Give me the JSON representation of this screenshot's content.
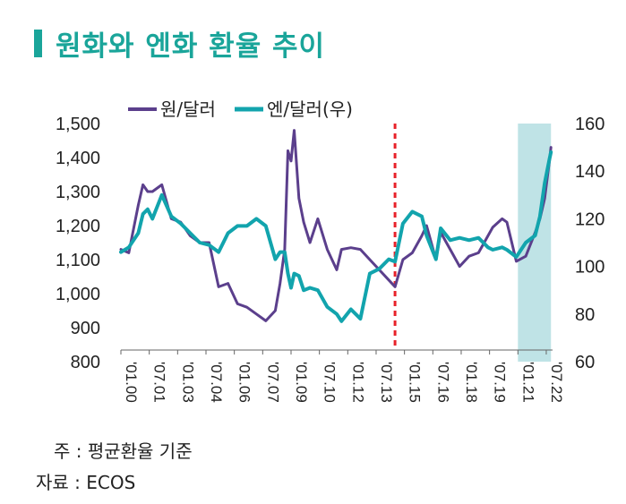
{
  "title": "원화와 엔화 환율 추이",
  "notes": {
    "note": "주 : 평균환율 기준",
    "source": "자료 : ECOS"
  },
  "colors": {
    "accent": "#1aa59a",
    "won": "#5b3f8c",
    "yen": "#12a4ad",
    "marker": "#e8222a",
    "shade": "#bfe3e6"
  },
  "chart_data": {
    "type": "line",
    "title": "",
    "legend": [
      "원/달러",
      "엔/달러(우)"
    ],
    "legend_position": "top",
    "x_ticks": [
      "'01.00",
      "'07.01",
      "'01.03",
      "'07.04",
      "'01.06",
      "'07.07",
      "'01.09",
      "'07.10",
      "'01.12",
      "'07.13",
      "'01.15",
      "'07.16",
      "'01.18",
      "'07.19",
      "'01.21",
      "'07.22"
    ],
    "y_left": {
      "ticks": [
        "1,500",
        "1,400",
        "1,300",
        "1,200",
        "1,100",
        "1,000",
        "900",
        "800"
      ],
      "range": [
        800,
        1500
      ]
    },
    "y_right": {
      "ticks": [
        "160",
        "140",
        "120",
        "100",
        "80",
        "60"
      ],
      "range": [
        60,
        160
      ]
    },
    "vertical_marker_x": "2014-07",
    "shaded_range": [
      "2021-01",
      "2022-10"
    ],
    "series": [
      {
        "name": "원/달러",
        "axis": "left",
        "x": [
          "2000-01",
          "2000-06",
          "2000-12",
          "2001-03",
          "2001-06",
          "2001-09",
          "2002-03",
          "2002-09",
          "2003-03",
          "2003-09",
          "2004-03",
          "2004-09",
          "2005-03",
          "2005-09",
          "2006-03",
          "2006-09",
          "2007-03",
          "2007-09",
          "2008-03",
          "2008-06",
          "2008-09",
          "2008-11",
          "2009-01",
          "2009-03",
          "2009-06",
          "2009-09",
          "2010-01",
          "2010-06",
          "2010-12",
          "2011-06",
          "2011-09",
          "2012-03",
          "2012-09",
          "2013-03",
          "2013-09",
          "2014-03",
          "2014-07",
          "2014-12",
          "2015-06",
          "2015-12",
          "2016-03",
          "2016-09",
          "2016-12",
          "2017-06",
          "2017-12",
          "2018-06",
          "2018-12",
          "2019-06",
          "2019-09",
          "2020-03",
          "2020-06",
          "2020-12",
          "2021-06",
          "2021-12",
          "2022-03",
          "2022-06",
          "2022-09",
          "2022-10"
        ],
        "y": [
          1130,
          1120,
          1260,
          1320,
          1300,
          1300,
          1320,
          1220,
          1210,
          1170,
          1150,
          1150,
          1020,
          1030,
          970,
          960,
          940,
          920,
          950,
          1030,
          1130,
          1420,
          1390,
          1480,
          1280,
          1210,
          1150,
          1220,
          1130,
          1070,
          1130,
          1135,
          1130,
          1100,
          1070,
          1040,
          1020,
          1100,
          1120,
          1170,
          1200,
          1100,
          1180,
          1130,
          1080,
          1110,
          1120,
          1170,
          1195,
          1220,
          1210,
          1095,
          1110,
          1180,
          1220,
          1280,
          1390,
          1430
        ]
      },
      {
        "name": "엔/달러(우)",
        "axis": "right",
        "x": [
          "2000-01",
          "2000-06",
          "2000-12",
          "2001-03",
          "2001-06",
          "2001-09",
          "2002-03",
          "2002-09",
          "2003-03",
          "2003-09",
          "2004-03",
          "2004-09",
          "2005-03",
          "2005-09",
          "2006-03",
          "2006-09",
          "2007-03",
          "2007-09",
          "2008-03",
          "2008-06",
          "2008-09",
          "2008-11",
          "2009-01",
          "2009-03",
          "2009-06",
          "2009-09",
          "2010-01",
          "2010-06",
          "2010-12",
          "2011-06",
          "2011-09",
          "2012-03",
          "2012-09",
          "2013-03",
          "2013-09",
          "2014-03",
          "2014-07",
          "2014-12",
          "2015-06",
          "2015-12",
          "2016-03",
          "2016-09",
          "2016-12",
          "2017-06",
          "2017-12",
          "2018-06",
          "2018-12",
          "2019-06",
          "2019-09",
          "2020-03",
          "2020-06",
          "2020-12",
          "2021-06",
          "2021-12",
          "2022-03",
          "2022-06",
          "2022-09",
          "2022-10"
        ],
        "y": [
          106,
          108,
          114,
          122,
          124,
          120,
          130,
          121,
          118,
          114,
          110,
          109,
          106,
          114,
          117,
          117,
          120,
          117,
          103,
          106,
          106,
          97,
          91,
          97,
          96,
          90,
          91,
          90,
          83,
          80,
          77,
          82,
          78,
          97,
          99,
          103,
          102,
          118,
          123,
          121,
          113,
          103,
          116,
          111,
          112,
          111,
          112,
          108,
          107,
          108,
          107,
          104,
          110,
          113,
          121,
          135,
          145,
          148
        ]
      }
    ]
  }
}
